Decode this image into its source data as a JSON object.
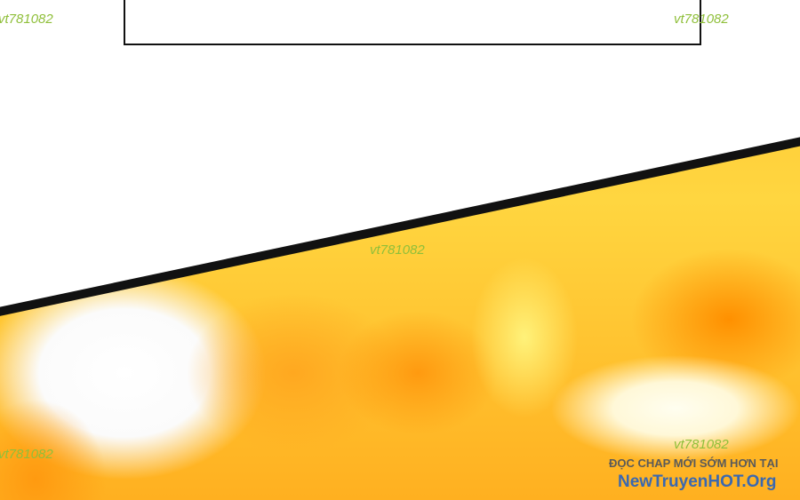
{
  "watermarks": [
    "vt781082",
    "vt781082",
    "vt781082",
    "vt781082",
    "vt781082"
  ],
  "promo": {
    "line1": "ĐỌC CHAP MỚI SỚM HƠN TẠI",
    "line2": "NewTruyenHOT.Org"
  }
}
